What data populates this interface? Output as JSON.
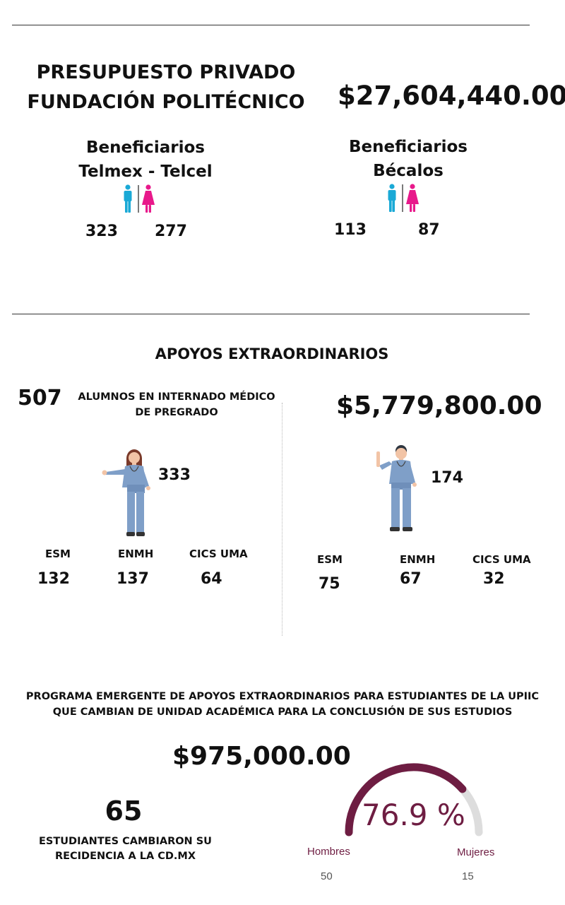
{
  "header": {
    "title_line1": "PRESUPUESTO PRIVADO",
    "title_line2": "FUNDACIÓN POLITÉCNICO",
    "budget": "$27,604,440.00"
  },
  "beneficiaries": [
    {
      "title_line1": "Beneficiarios",
      "title_line2": "Telmex - Telcel",
      "men": "323",
      "women": "277"
    },
    {
      "title_line1": "Beneficiarios",
      "title_line2": "Bécalos",
      "men": "113",
      "women": "87"
    }
  ],
  "extraordinary": {
    "title": "APOYOS EXTRAORDINARIOS",
    "total_students": "507",
    "students_label_line1": "ALUMNOS EN INTERNADO MÉDICO",
    "students_label_line2": "DE PREGRADO",
    "amount": "$5,779,800.00",
    "women": {
      "count": "333",
      "schools": [
        {
          "name": "ESM",
          "value": "132"
        },
        {
          "name": "ENMH",
          "value": "137"
        },
        {
          "name": "CICS UMA",
          "value": "64"
        }
      ]
    },
    "men": {
      "count": "174",
      "schools": [
        {
          "name": "ESM",
          "value": "75"
        },
        {
          "name": "ENMH",
          "value": "67"
        },
        {
          "name": "CICS UMA",
          "value": "32"
        }
      ]
    }
  },
  "program": {
    "title_line1": "PROGRAMA EMERGENTE DE APOYOS EXTRAORDINARIOS PARA ESTUDIANTES DE LA UPIIC",
    "title_line2": "QUE CAMBIAN DE UNIDAD ACADÉMICA PARA LA CONCLUSIÓN DE SUS ESTUDIOS",
    "amount": "$975,000.00",
    "students_count": "65",
    "students_label_line1": "ESTUDIANTES CAMBIARON SU",
    "students_label_line2": "RECIDENCIA A LA CD.MX",
    "gauge": {
      "percent": 76.9,
      "label": "76.9 %",
      "left_label": "Hombres",
      "left_value": "50",
      "right_label": "Mujeres",
      "right_value": "15",
      "fill_color": "#6e1d42",
      "track_color": "#dddddd"
    }
  },
  "colors": {
    "male_icon": "#1aa9d6",
    "female_icon": "#e8198b",
    "scrubs": "#7f9fc8"
  }
}
